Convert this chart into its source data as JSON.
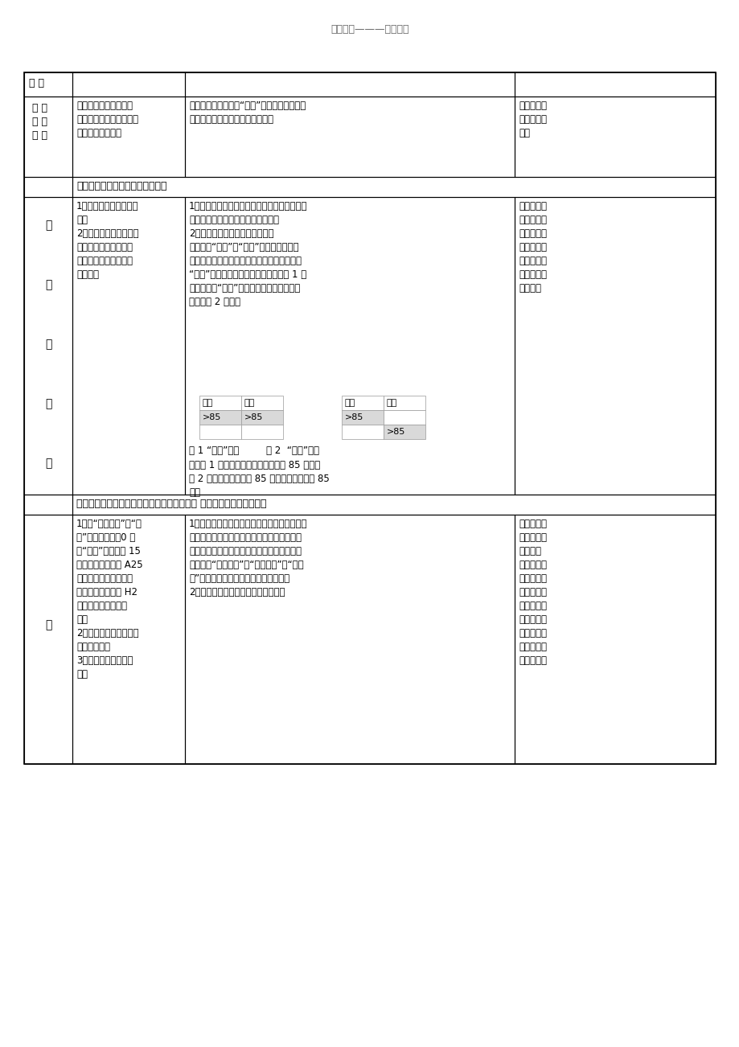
{
  "title": "学习备备———欢迎下载",
  "bg_color": "#ffffff",
  "header_text": "过 程",
  "col0_row1": "新 课\n引 入\n部 分",
  "col1_row1": "课件中播放视频，以视\n频为切入点，通过提问，\n吸引学生的注意。",
  "col2_row1": "观看视频（超级女生“海选”部分），并思考与\n回答问题，引入新课（高级筛选）",
  "col3_row1": "诱发主体，\n营造课堂气\n氛。",
  "task1_header": "任务一：学习高级筛选（幻灯片）",
  "task1_col1": "1、指导学生自学高级筛\n选。\n2、引导学生分析高级筛\n选的条件是什么、条件\n放在那里、筛选结果放\n在那里。",
  "task1_col2": "1、学生自学如何分析高级筛选的条件是什么、\n条件放在那里、筛选结果放在那里。\n2、探索高级筛选的方法与技巧。\n条件分为“并列”和“或者”两种。它们的标\n题写在同一行，条件写在标题的下方，条件为\n“并列”时，所有条件写在同一行上如图 1 所\n示；条件为“或者”时，所有条件写在不同一\n行上如图 2 所示。",
  "fig1_caption": "图 1 “并列”条件         图 2  “或者”条件",
  "fig_desc": "其中图 1 表示语文和英语成绩都高于 85 分；而\n图 2 表示语文成绩高于 85 分或英语成绩高于 85\n分。",
  "task1_col3": "打破传统的\n教学模式，\n培养学生的\n自学能力，\n学生真正做\n到自主学习\n的模式。",
  "left_labels": [
    "师",
    "生",
    "互",
    "动",
    "部"
  ],
  "task2_header": "任务二：体验用高级筛选解决实际问题（一） 难度系数：低（幻灯片）",
  "task2_col1": "1、用“高级筛选”将“涨\n幅”大于（不含）0 或\n者“现价”小于等于 15\n的记录，复制到以 A25\n单元格为左上角的输出\n区域，条件区是以 H2\n单元格为左上角的区\n域。\n2、教师在学生中进行统\n计完成情况。\n3、做适当的引导与分\n析。",
  "task2_col2": "1、首先学生在草稿纸上分析条件是什么、条件\n放在那里，筛选结果放在那里；再在计算机上\n按照题目要求写出条件并在高级筛选的对话框\n中分别在“数据区域”、“条件区域”和“复制\n到”的文本框中写出相应的单元格区域。\n2、学生来讲台演示具体的操作过程。",
  "task2_col3": "用已学的知\n识解决具体\n的实际问\n题，让学生\n真正体会的\n高级筛选的\n实用性，同\n时培养了学\n生的分析问\n题和解决问\n题的能力。",
  "bottom_label": "分",
  "light_gray": "#d9d9d9"
}
